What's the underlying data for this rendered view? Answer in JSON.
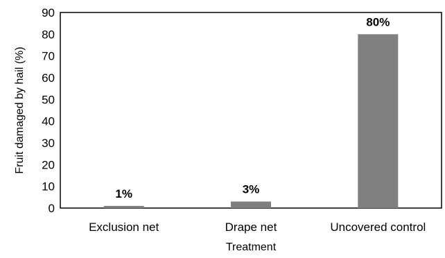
{
  "chart_data": {
    "type": "bar",
    "categories": [
      "Exclusion net",
      "Drape net",
      "Uncovered control"
    ],
    "values": [
      1,
      3,
      80
    ],
    "data_labels": [
      "1%",
      "3%",
      "80%"
    ],
    "xlabel": "Treatment",
    "ylabel": "Fruit damaged by hail (%)",
    "ylim": [
      0,
      90
    ],
    "yticks": [
      "0",
      "10",
      "20",
      "30",
      "40",
      "50",
      "60",
      "70",
      "80",
      "90"
    ],
    "grid": false,
    "legend": "none",
    "bar_color": "#808080"
  }
}
